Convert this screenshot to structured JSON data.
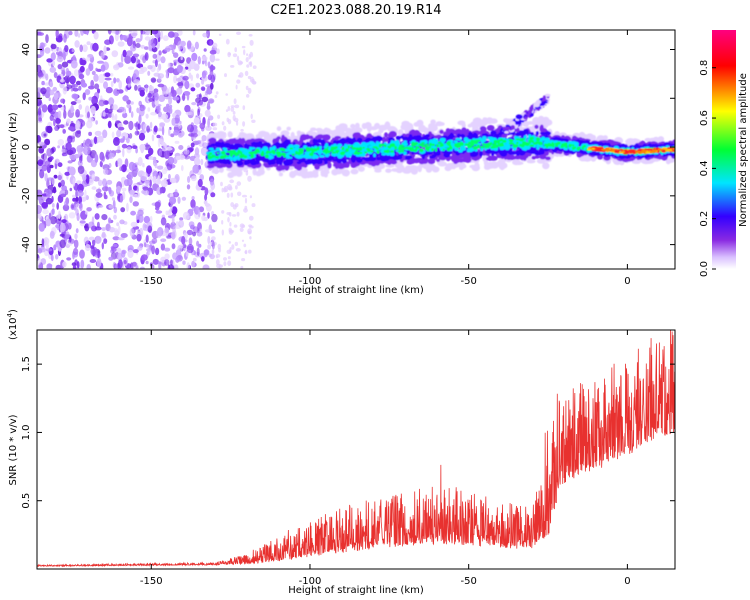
{
  "title": "C2E1.2023.088.20.19.R14",
  "chart_data": [
    {
      "type": "heatmap",
      "xlabel": "Height of straight line (km)",
      "ylabel": "Frequency (Hz)",
      "xlim": [
        -186,
        15
      ],
      "ylim": [
        -50,
        48
      ],
      "xticks": [
        -150,
        -100,
        -50,
        0
      ],
      "yticks": [
        -40,
        -20,
        0,
        20,
        40
      ],
      "colorbar": {
        "label": "Normalized spectral amplitude",
        "range": [
          0,
          0.95
        ],
        "ticks": [
          "0.0",
          "0.2",
          "0.4",
          "0.6",
          "0.8"
        ],
        "tick_values": [
          0,
          0.2,
          0.4,
          0.6,
          0.8
        ],
        "colormap": [
          "#ffffff",
          "#d9bfff",
          "#8a2be2",
          "#3300ff",
          "#00e5ff",
          "#00ff33",
          "#ffff00",
          "#ff0000",
          "#ff007f"
        ]
      },
      "features": {
        "noise_region_x": [
          -186,
          -130
        ],
        "signal_band_x": [
          -132,
          15
        ],
        "signal_center_freq_at_x": [
          [
            -132,
            -3
          ],
          [
            -100,
            -2
          ],
          [
            -50,
            1
          ],
          [
            -30,
            2
          ],
          [
            0,
            -2
          ],
          [
            15,
            -1
          ]
        ],
        "upper_branch_x": [
          -40,
          -25
        ],
        "upper_branch_freq": [
          5,
          20
        ]
      }
    },
    {
      "type": "line",
      "xlabel": "Height of straight line (km)",
      "ylabel": "SNR (10 * v/v)",
      "y_exponent_label": "(x10",
      "y_exponent_power": "4",
      "y_exponent_close": ")",
      "xlim": [
        -186,
        15
      ],
      "ylim": [
        0,
        17500
      ],
      "xticks": [
        -150,
        -100,
        -50,
        0
      ],
      "yticks": [
        5000,
        10000,
        15000
      ],
      "ytick_labels": [
        "0.5",
        "1.0",
        "1.5"
      ],
      "series_color": "#e8312f",
      "envelope": {
        "x": [
          -186,
          -130,
          -120,
          -110,
          -100,
          -90,
          -80,
          -70,
          -60,
          -50,
          -40,
          -30,
          -25,
          -22,
          -20,
          -10,
          0,
          10,
          15
        ],
        "base": [
          200,
          300,
          400,
          600,
          1000,
          1300,
          1600,
          1800,
          2000,
          1800,
          1600,
          1600,
          2500,
          5000,
          6500,
          7500,
          8500,
          9500,
          10000
        ],
        "amplitude": [
          80,
          150,
          600,
          1500,
          2200,
          2700,
          3000,
          3200,
          3500,
          3400,
          2800,
          2400,
          5000,
          6500,
          5500,
          5500,
          6000,
          6500,
          6500
        ]
      }
    }
  ]
}
